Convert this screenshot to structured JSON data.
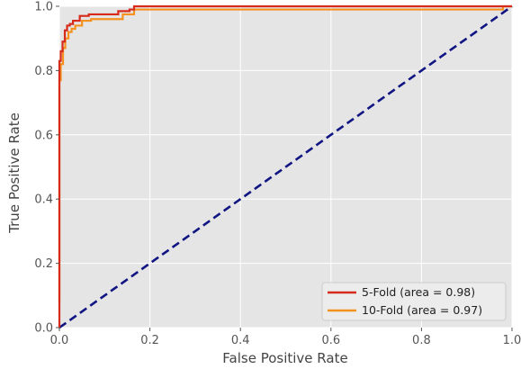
{
  "chart_data": {
    "type": "line",
    "title": "",
    "xlabel": "False Positive Rate",
    "ylabel": "True Positive Rate",
    "xlim": [
      0.0,
      1.0
    ],
    "ylim": [
      0.0,
      1.0
    ],
    "xticks": [
      "0.0",
      "0.2",
      "0.4",
      "0.6",
      "0.8",
      "1.0"
    ],
    "yticks": [
      "0.0",
      "0.2",
      "0.4",
      "0.6",
      "0.8",
      "1.0"
    ],
    "grid": true,
    "legend_position": "bottom-right",
    "series": [
      {
        "name": "5-Fold (area = 0.98)",
        "color": "#d62a1a",
        "style": "solid",
        "x": [
          0.0,
          0.0,
          0.003,
          0.003,
          0.007,
          0.007,
          0.012,
          0.012,
          0.017,
          0.017,
          0.023,
          0.023,
          0.03,
          0.03,
          0.045,
          0.045,
          0.065,
          0.065,
          0.13,
          0.13,
          0.155,
          0.155,
          0.165,
          0.165,
          1.0
        ],
        "y": [
          0.0,
          0.83,
          0.83,
          0.86,
          0.86,
          0.89,
          0.89,
          0.925,
          0.925,
          0.94,
          0.94,
          0.945,
          0.945,
          0.955,
          0.955,
          0.97,
          0.97,
          0.975,
          0.975,
          0.985,
          0.985,
          0.99,
          0.99,
          1.0,
          1.0
        ]
      },
      {
        "name": "10-Fold (area = 0.97)",
        "color": "#f5921f",
        "style": "solid",
        "x": [
          0.0,
          0.0,
          0.003,
          0.003,
          0.008,
          0.008,
          0.013,
          0.013,
          0.02,
          0.02,
          0.027,
          0.027,
          0.035,
          0.035,
          0.05,
          0.05,
          0.07,
          0.07,
          0.14,
          0.14,
          0.165,
          0.165,
          0.98,
          0.98,
          1.0
        ],
        "y": [
          0.08,
          0.77,
          0.77,
          0.82,
          0.82,
          0.87,
          0.87,
          0.9,
          0.9,
          0.92,
          0.92,
          0.93,
          0.93,
          0.94,
          0.94,
          0.955,
          0.955,
          0.96,
          0.96,
          0.975,
          0.975,
          0.99,
          0.99,
          1.0,
          1.0
        ]
      },
      {
        "name": "",
        "color": "#101582",
        "style": "dashed",
        "x": [
          0.0,
          1.0
        ],
        "y": [
          0.0,
          1.0
        ]
      }
    ]
  }
}
